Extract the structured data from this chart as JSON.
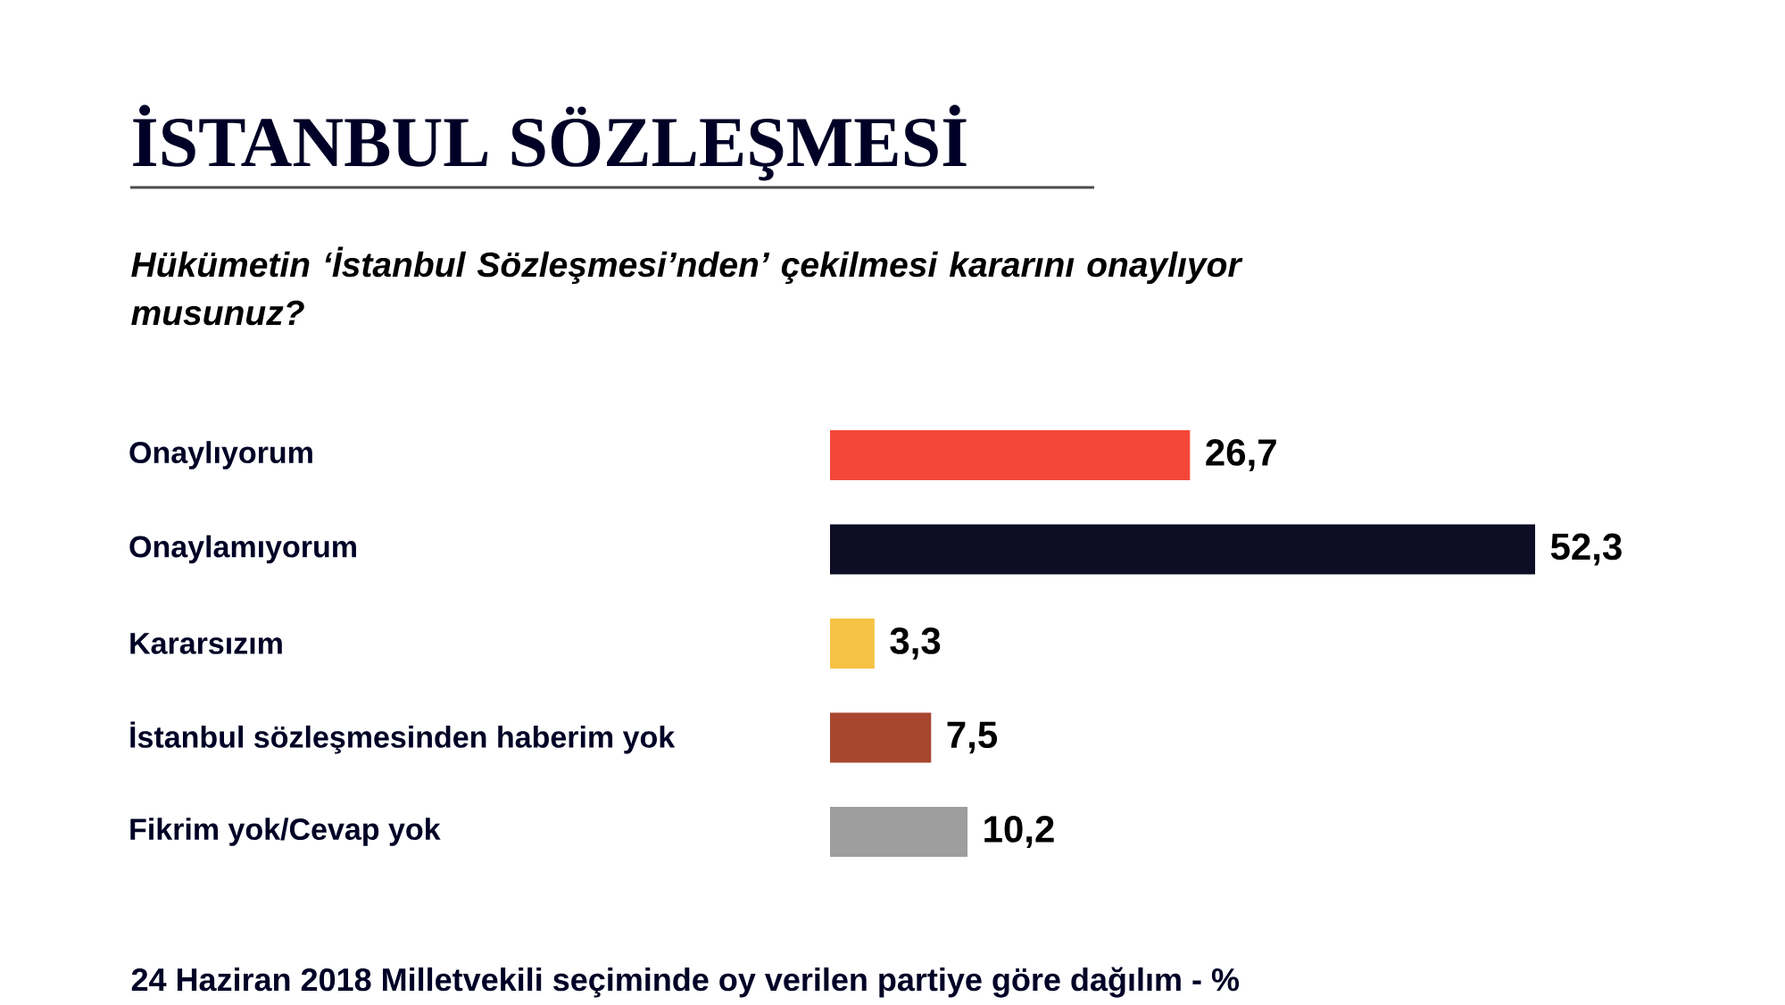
{
  "chart_data": {
    "type": "bar",
    "orientation": "horizontal",
    "title": "İSTANBUL SÖZLEŞMESİ",
    "subtitle": "Hükümetin ‘İstanbul Sözleşmesi’nden’ çekilmesi kararını onaylıyor musunuz?",
    "categories": [
      "Onaylıyorum",
      "Onaylamıyorum",
      "Kararsızım",
      "İstanbul sözleşmesinden haberim yok",
      "Fikrim yok/Cevap yok"
    ],
    "values": [
      26.7,
      52.3,
      3.3,
      7.5,
      10.2
    ],
    "colors": [
      "#f4473a",
      "#0d0d25",
      "#f6c244",
      "#a8472e",
      "#9e9e9e"
    ],
    "value_labels": [
      "26,7",
      "52,3",
      "3,3",
      "7,5",
      "10,2"
    ],
    "annotations": [
      "24 Haziran 2018 Milletvekili seçiminde oy verilen partiye göre dağılım - %"
    ]
  }
}
